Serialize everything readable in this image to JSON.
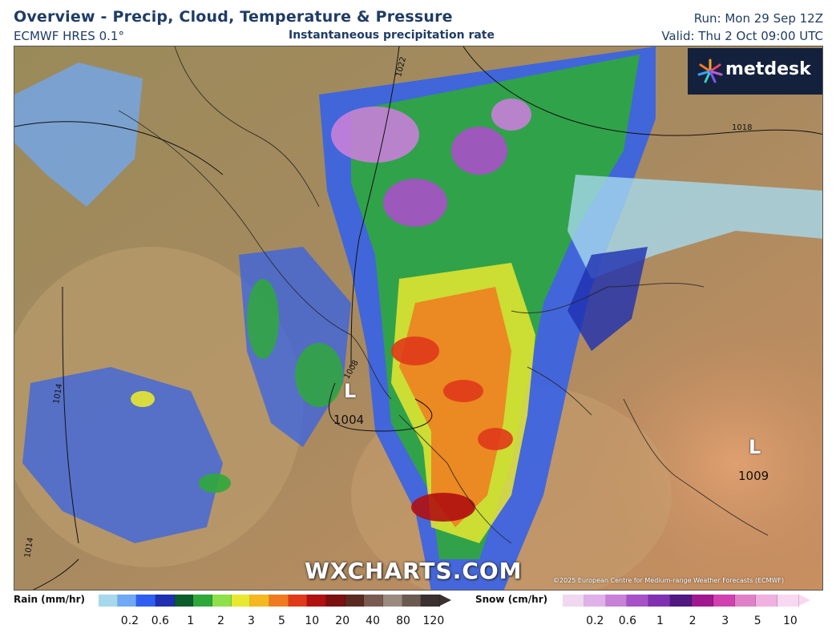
{
  "header": {
    "title": "Overview - Precip, Cloud, Temperature & Pressure",
    "model": "ECMWF HRES 0.1°",
    "field": "Instantaneous precipitation rate",
    "run": "Run: Mon 29 Sep 12Z",
    "valid": "Valid: Thu 2 Oct 09:00 UTC"
  },
  "branding": {
    "logo_text": "metdesk",
    "watermark": "WXCHARTS.COM",
    "credit": "©2025 European Centre for Medium-range Weather Forecasts (ECMWF)"
  },
  "pressure_systems": [
    {
      "type": "L",
      "value": "1004"
    },
    {
      "type": "L",
      "value": "1009"
    }
  ],
  "isobar_labels": [
    "1022",
    "1018",
    "1014",
    "1008",
    "1014"
  ],
  "legend": {
    "rain": {
      "label": "Rain (mm/hr)",
      "ticks": [
        "0.2",
        "0.6",
        "1",
        "2",
        "3",
        "5",
        "10",
        "20",
        "40",
        "80",
        "120"
      ],
      "colors": [
        "#a6d8ec",
        "#6fa8f5",
        "#2f5ff0",
        "#1e2fb0",
        "#0a5c2a",
        "#2fa83a",
        "#8fe04a",
        "#e8e830",
        "#f5b820",
        "#f07a20",
        "#e03a1a",
        "#b01010",
        "#7a1010",
        "#5a2a20",
        "#7a5a50",
        "#9a8a80",
        "#6a5a50",
        "#3a3030"
      ]
    },
    "snow": {
      "label": "Snow (cm/hr)",
      "ticks": [
        "0.2",
        "0.6",
        "1",
        "2",
        "3",
        "5",
        "10"
      ],
      "colors": [
        "#f0d8f0",
        "#e0b0e8",
        "#c880d8",
        "#a850c8",
        "#8030b0",
        "#501880",
        "#a01890",
        "#d040b0",
        "#e080c8",
        "#f0b0e0",
        "#f8d8f0"
      ]
    }
  }
}
